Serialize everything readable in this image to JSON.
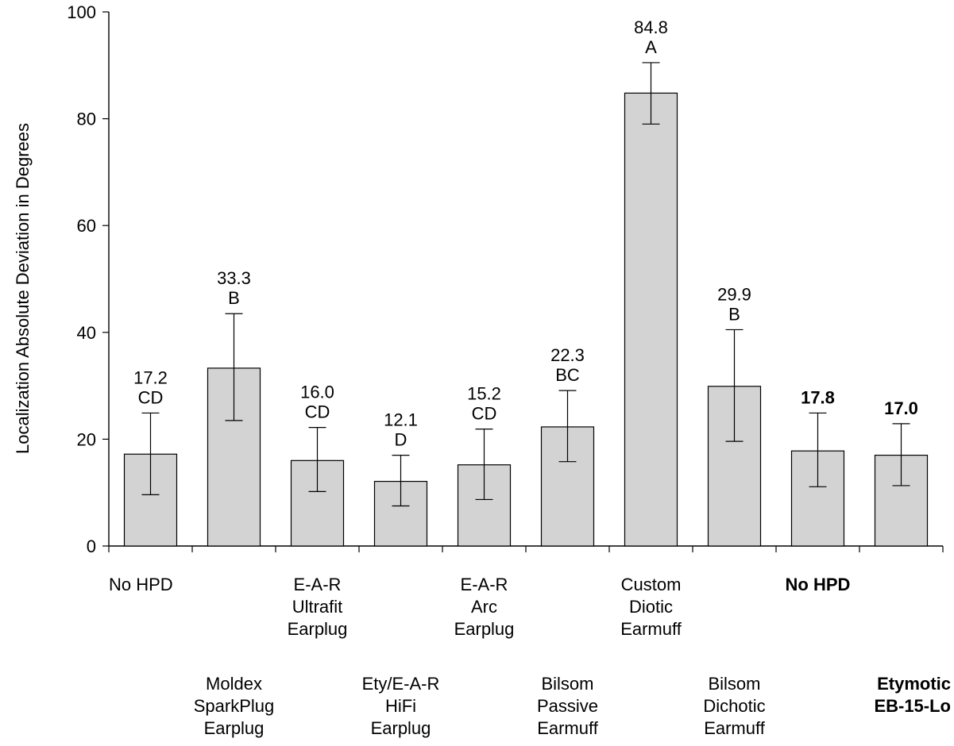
{
  "chart_data": {
    "type": "bar",
    "ylabel": "Localization Absolute Deviation in Degrees",
    "ylim": [
      0,
      100
    ],
    "yticks": [
      "0",
      "20",
      "40",
      "60",
      "80",
      "100"
    ],
    "bar_color": "#d3d3d3",
    "categories": [
      {
        "lines": [
          "No HPD"
        ],
        "row": "upper",
        "bold": false
      },
      {
        "lines": [
          "Moldex",
          "SparkPlug",
          "Earplug"
        ],
        "row": "lower",
        "bold": false
      },
      {
        "lines": [
          "E-A-R",
          "Ultrafit",
          "Earplug"
        ],
        "row": "upper",
        "bold": false
      },
      {
        "lines": [
          "Ety/E-A-R",
          "HiFi",
          "Earplug"
        ],
        "row": "lower",
        "bold": false
      },
      {
        "lines": [
          "E-A-R",
          "Arc",
          "Earplug"
        ],
        "row": "upper",
        "bold": false
      },
      {
        "lines": [
          "Bilsom",
          "Passive",
          "Earmuff"
        ],
        "row": "lower",
        "bold": false
      },
      {
        "lines": [
          "Custom",
          "Diotic",
          "Earmuff"
        ],
        "row": "upper",
        "bold": false
      },
      {
        "lines": [
          "Bilsom",
          "Dichotic",
          "Earmuff"
        ],
        "row": "lower",
        "bold": false
      },
      {
        "lines": [
          "No HPD"
        ],
        "row": "upper",
        "bold": true
      },
      {
        "lines": [
          "Etymotic",
          "EB-15-Lo"
        ],
        "row": "lower",
        "bold": true
      }
    ],
    "values": [
      17.2,
      33.3,
      16.0,
      12.1,
      15.2,
      22.3,
      84.8,
      29.9,
      17.8,
      17.0
    ],
    "error_low": [
      9.6,
      23.5,
      10.2,
      7.5,
      8.7,
      15.8,
      79.0,
      19.6,
      11.1,
      11.3
    ],
    "error_high": [
      24.9,
      43.5,
      22.2,
      17.0,
      21.9,
      29.1,
      90.5,
      40.5,
      24.9,
      22.9
    ],
    "value_labels": [
      "17.2",
      "33.3",
      "16.0",
      "12.1",
      "15.2",
      "22.3",
      "84.8",
      "29.9",
      "17.8",
      "17.0"
    ],
    "group_labels": [
      "CD",
      "B",
      "CD",
      "D",
      "CD",
      "BC",
      "A",
      "B",
      "",
      ""
    ],
    "label_bold": [
      false,
      false,
      false,
      false,
      false,
      false,
      false,
      false,
      true,
      true
    ]
  }
}
